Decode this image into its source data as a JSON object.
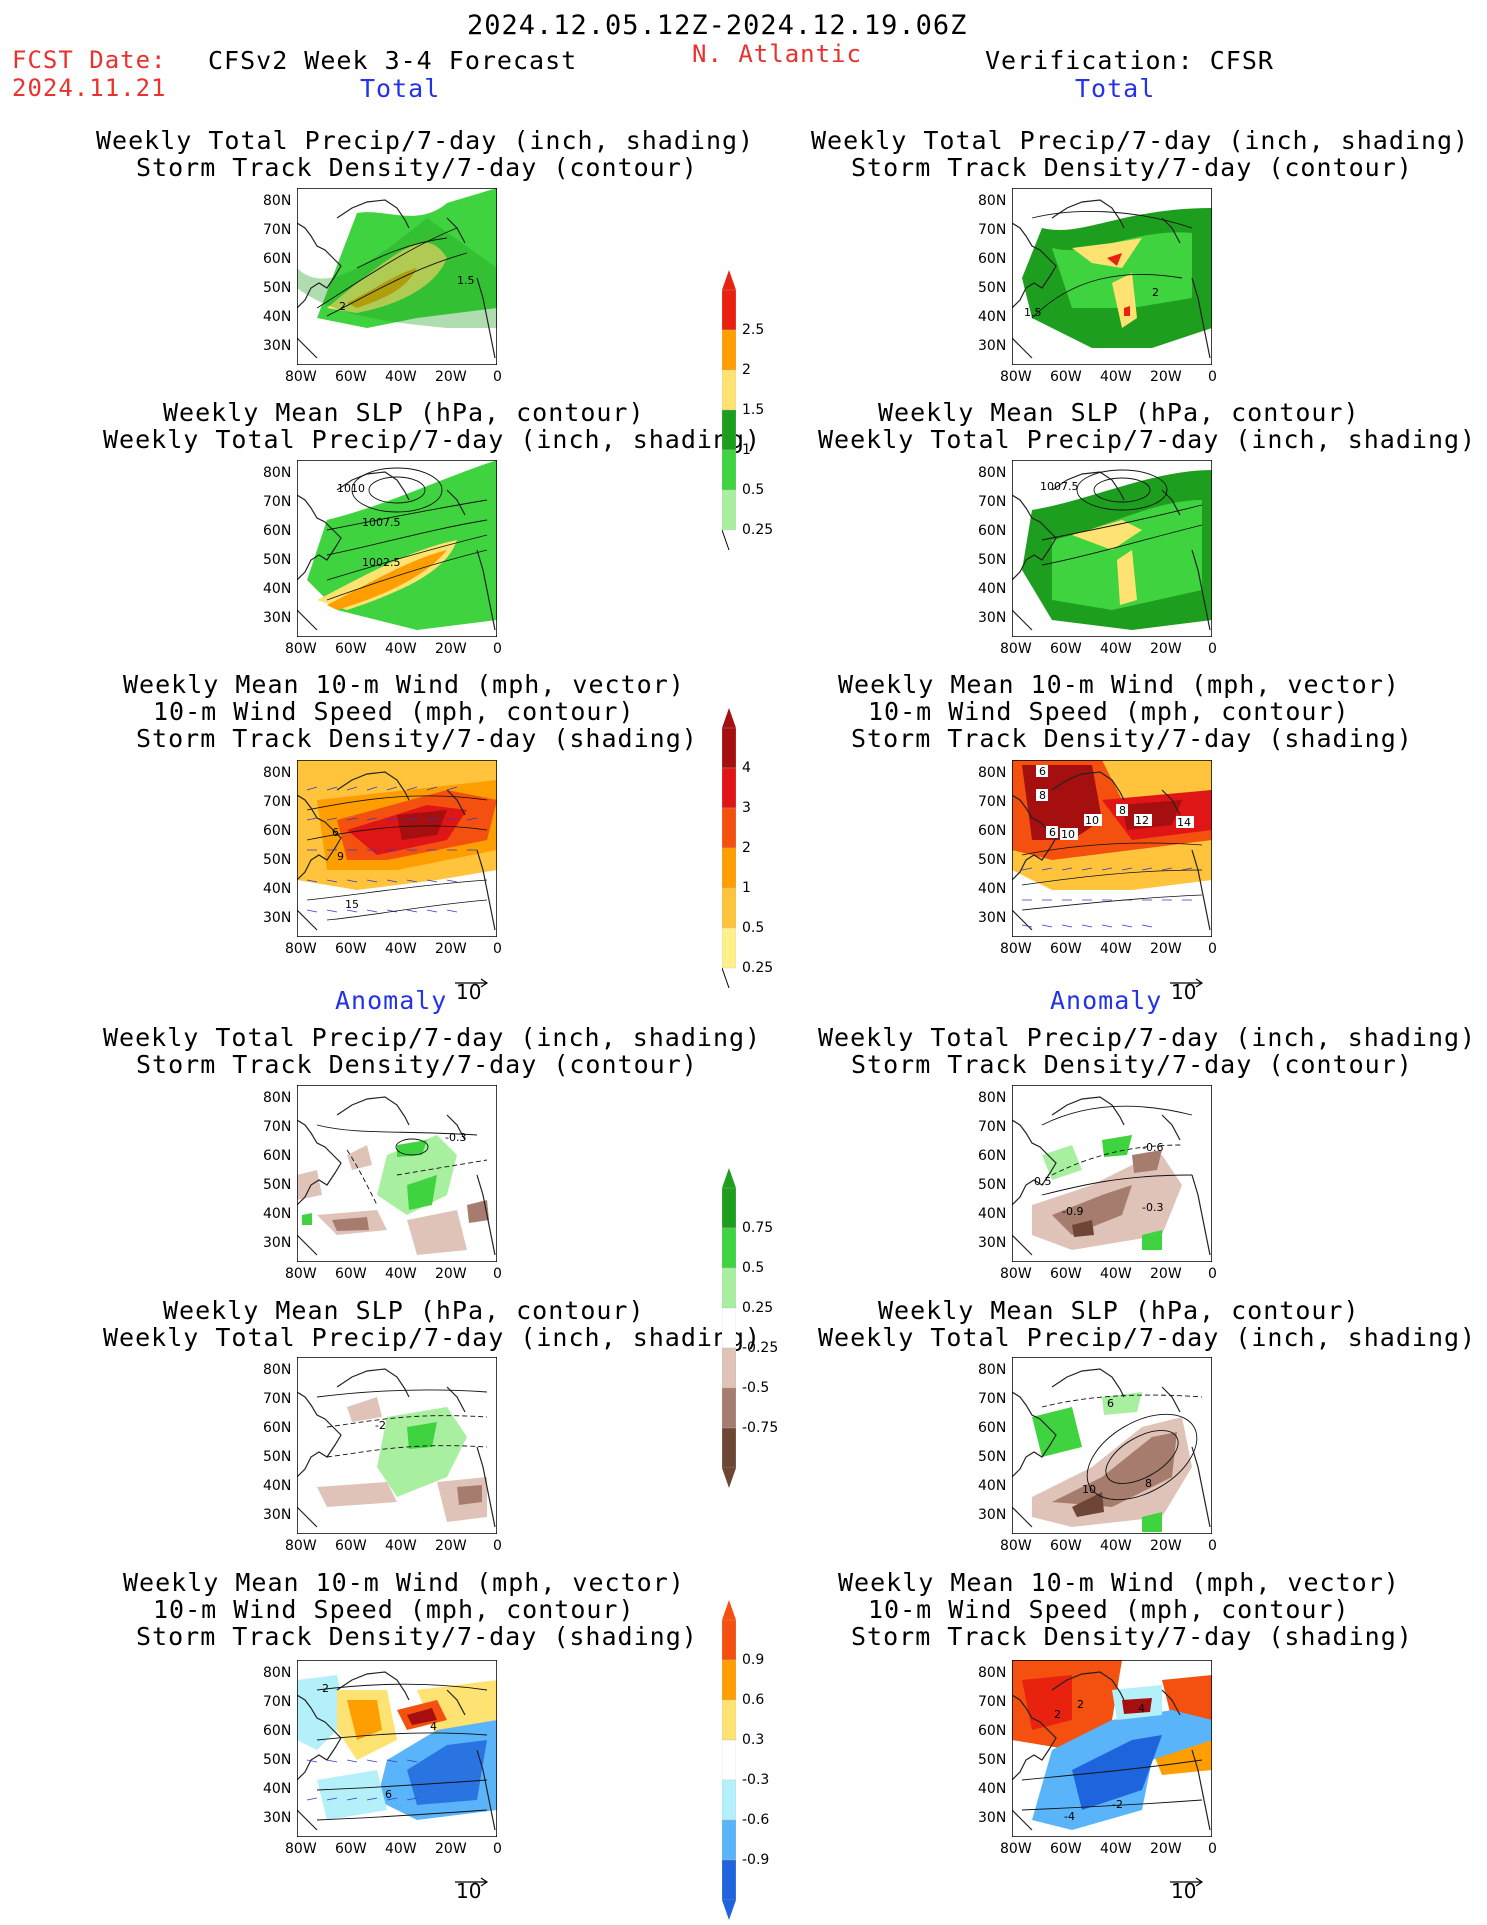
{
  "header": {
    "period": "2024.12.05.12Z-2024.12.19.06Z",
    "fcst_label": "FCST Date:",
    "fcst_date": "2024.11.21",
    "model": "CFSv2 Week 3-4 Forecast",
    "region": "N. Atlantic",
    "verification": "Verification: CFSR"
  },
  "section_labels": {
    "total": "Total",
    "anomaly": "Anomaly"
  },
  "titles": {
    "precip_storm": [
      "Weekly Total Precip/7-day (inch, shading)",
      "Storm Track Density/7-day (contour)"
    ],
    "slp_precip": [
      "Weekly Mean SLP (hPa, contour)",
      "Weekly Total Precip/7-day (inch, shading)"
    ],
    "wind_storm": [
      "Weekly Mean 10-m Wind (mph, vector)",
      "10-m Wind Speed (mph, contour)",
      "Storm Track Density/7-day (shading)"
    ]
  },
  "axes": {
    "lat_ticks": [
      "80N",
      "70N",
      "60N",
      "50N",
      "40N",
      "30N"
    ],
    "lon_ticks": [
      "80W",
      "60W",
      "40W",
      "20W",
      "0"
    ]
  },
  "vector_reference": "10",
  "contour_labels": {
    "fcst_precip_storm": [
      "2",
      "1.5"
    ],
    "fcst_slp": [
      "1010",
      "1007.5",
      "1002.5"
    ],
    "fcst_wind": [
      "6",
      "9",
      "15"
    ],
    "ver_precip_storm": [
      "2",
      "1.5"
    ],
    "ver_slp": [
      "1007.5"
    ],
    "ver_wind": [
      "6",
      "8",
      "10",
      "8",
      "12",
      "14",
      "6",
      "10"
    ],
    "fcst_anom_precip": [
      "-0.3"
    ],
    "fcst_anom_slp": [
      "-2"
    ],
    "fcst_anom_wind": [
      "2",
      "4",
      "6"
    ],
    "ver_anom_precip": [
      "-0.6",
      "0.5",
      "-0.9",
      "-0.3"
    ],
    "ver_anom_slp": [
      "6",
      "10",
      "8"
    ],
    "ver_anom_wind": [
      "2",
      "2",
      "4",
      "-4",
      "-2"
    ]
  },
  "colorbars": {
    "precip_total": {
      "labels": [
        "2.5",
        "2",
        "1.5",
        "1",
        "0.5",
        "0.25"
      ],
      "colors": [
        "#e8220e",
        "#ff9e00",
        "#ffe372",
        "#1e9e1e",
        "#3fd43f",
        "#a8f0a0"
      ]
    },
    "storm_total": {
      "labels": [
        "4",
        "3",
        "2",
        "1",
        "0.5",
        "0.25"
      ],
      "colors": [
        "#a50f0f",
        "#e01515",
        "#f4500f",
        "#ff9e00",
        "#ffc43c",
        "#fff08c"
      ]
    },
    "precip_anom": {
      "labels": [
        "0.75",
        "0.5",
        "0.25",
        "-0.25",
        "-0.5",
        "-0.75"
      ],
      "colors": [
        "#1e9e1e",
        "#3fd43f",
        "#a8f0a0",
        "#ffffff",
        "#e0c3b8",
        "#a57c6e",
        "#6e4636"
      ]
    },
    "storm_anom": {
      "labels": [
        "0.9",
        "0.6",
        "0.3",
        "-0.3",
        "-0.6",
        "-0.9"
      ],
      "colors": [
        "#f4500f",
        "#ff9e00",
        "#ffe372",
        "#ffffff",
        "#b4f0fa",
        "#5ab4fa",
        "#1e64dc"
      ]
    }
  }
}
